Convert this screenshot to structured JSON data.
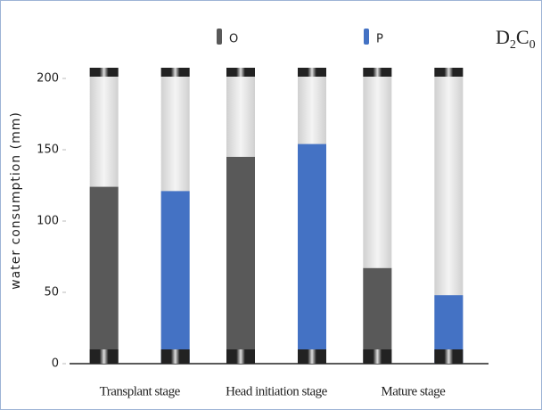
{
  "chart_data": {
    "type": "bar",
    "y_label": "water consumption (mm)",
    "annotation": [
      "D",
      "2",
      "C",
      "0"
    ],
    "categories": [
      "Transplant stage",
      "Head initiation stage",
      "Mature stage"
    ],
    "series": [
      {
        "name": "O",
        "color": "#595959",
        "values": [
          124,
          145,
          67
        ]
      },
      {
        "name": "P",
        "color": "#4472c4",
        "values": [
          121,
          154,
          48
        ]
      }
    ],
    "ylim": [
      0,
      210
    ],
    "yticks": [
      0,
      50,
      100,
      150,
      200
    ]
  }
}
